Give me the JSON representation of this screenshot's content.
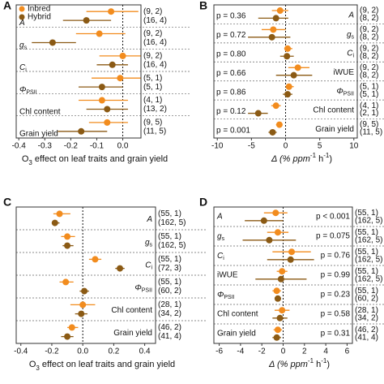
{
  "chart_data": [
    {
      "type": "forest",
      "panel": "A",
      "xlabel": [
        "O",
        "3",
        " effect on leaf traits and grain yield"
      ],
      "xlabel_script": "sub",
      "xlim": [
        -0.41,
        0.07
      ],
      "xticks": [
        -0.4,
        -0.3,
        -0.2,
        -0.1,
        {
          "value": 0,
          "label": "0.0"
        }
      ],
      "traits": [
        "A",
        [
          "g",
          "s"
        ],
        [
          "C",
          "i"
        ],
        [
          "Φ",
          "PSII"
        ],
        "Chl content",
        "Grain yield"
      ],
      "trait_align": "left",
      "legend": "upper left",
      "series": [
        {
          "name": "Inbred",
          "color": "#f28c1e",
          "values": [
            -0.045,
            -0.09,
            0.0,
            -0.01,
            -0.08,
            -0.06
          ],
          "lo": [
            -0.14,
            -0.18,
            -0.09,
            -0.12,
            -0.17,
            -0.13
          ],
          "hi": [
            0.06,
            0.01,
            0.07,
            0.07,
            0.02,
            0.02
          ]
        },
        {
          "name": "Hybrid",
          "color": "#8b5a14",
          "values": [
            -0.14,
            -0.27,
            -0.04,
            -0.08,
            -0.06,
            -0.16
          ],
          "lo": [
            -0.23,
            -0.35,
            -0.1,
            -0.17,
            -0.14,
            -0.25
          ],
          "hi": [
            -0.045,
            -0.18,
            0.02,
            0.0,
            0.02,
            -0.06
          ]
        }
      ],
      "counts": [
        "(9, 2)",
        "(16, 4)",
        "(9, 2)",
        "(16, 4)",
        "(9, 2)",
        "(16, 4)",
        "(5, 1)",
        "(5, 1)",
        "(4, 1)",
        "(13, 2)",
        "(9, 5)",
        "(11, 5)"
      ]
    },
    {
      "type": "forest",
      "panel": "B",
      "xlabel": [
        "Δ (% ppm",
        "-1",
        " h",
        "-1",
        ")"
      ],
      "xlabel_script": "sup",
      "xlim": [
        -10.5,
        10.5
      ],
      "xticks": [
        -10,
        -5,
        0,
        5,
        10
      ],
      "traits": [
        "A",
        [
          "g",
          "s"
        ],
        [
          "C",
          "i"
        ],
        "iWUE",
        [
          "Φ",
          "PSII"
        ],
        "Chl content",
        "Grain yield"
      ],
      "trait_align": "right",
      "p_values": [
        "p = 0.36",
        "p = 0.72",
        "p = 0.80",
        "p = 0.66",
        "p = 0.86",
        "p = 0.12",
        "p = 0.001"
      ],
      "p_align": "left",
      "series": [
        {
          "name": "Inbred",
          "color": "#f28c1e",
          "values": [
            -0.8,
            -1.8,
            0.3,
            1.8,
            0.5,
            -1.4,
            -0.9
          ],
          "lo": [
            -2,
            -3.5,
            -0.2,
            0.4,
            0,
            -2.1,
            -1.4
          ],
          "hi": [
            0.4,
            0,
            1,
            3.5,
            1.2,
            -0.7,
            -0.5
          ]
        },
        {
          "name": "Hybrid",
          "color": "#8b5a14",
          "values": [
            -1.4,
            -2,
            0.2,
            1.2,
            0.3,
            -4,
            -1.9
          ],
          "lo": [
            -4,
            -5.5,
            -0.8,
            -1.4,
            -0.4,
            -5.5,
            -2.5
          ],
          "hi": [
            0.4,
            0.7,
            1.2,
            3.9,
            1,
            -2.6,
            -1.3
          ]
        }
      ],
      "counts": [
        "(9, 2)",
        "(8, 2)",
        "(9, 2)",
        "(8, 2)",
        "(9, 2)",
        "(8, 2)",
        "(9, 2)",
        "(8, 2)",
        "(5, 1)",
        "(5, 1)",
        "(4, 1)",
        "(2, 1)",
        "(9, 5)",
        "(11, 5)"
      ]
    },
    {
      "type": "forest",
      "panel": "C",
      "xlabel": [
        "O",
        "3",
        " effect on leaf traits and grain yield"
      ],
      "xlabel_script": "sub",
      "xlim": [
        -0.43,
        0.47
      ],
      "xticks": [
        -0.4,
        -0.2,
        {
          "value": 0,
          "label": "0.0"
        },
        0.2,
        0.4
      ],
      "traits": [
        "A",
        [
          "g",
          "s"
        ],
        [
          "C",
          "i"
        ],
        [
          "Φ",
          "PSII"
        ],
        "Chl content",
        "Grain yield"
      ],
      "trait_align": "right",
      "series": [
        {
          "name": "Inbred",
          "color": "#f28c1e",
          "values": [
            -0.15,
            -0.1,
            0.08,
            -0.11,
            0.0,
            -0.07
          ],
          "lo": [
            -0.19,
            -0.14,
            0.04,
            -0.15,
            -0.08,
            -0.1
          ],
          "hi": [
            -0.08,
            -0.05,
            0.12,
            -0.06,
            0.08,
            -0.03
          ]
        },
        {
          "name": "Hybrid",
          "color": "#8b5a14",
          "values": [
            -0.18,
            -0.1,
            0.24,
            0.01,
            -0.01,
            -0.1
          ],
          "lo": [
            -0.2,
            -0.13,
            0.21,
            -0.02,
            -0.05,
            -0.14
          ],
          "hi": [
            -0.15,
            -0.06,
            0.27,
            0.04,
            0.03,
            -0.06
          ]
        }
      ],
      "counts": [
        "(55, 1)",
        "(162, 5)",
        "(55, 1)",
        "(162, 5)",
        "(55, 1)",
        "(72, 3)",
        "(55, 1)",
        "(60, 2)",
        "(28, 1)",
        "(34, 2)",
        "(46, 2)",
        "(41, 4)"
      ]
    },
    {
      "type": "forest",
      "panel": "D",
      "xlabel": [
        "Δ (% ppm",
        "-1",
        " h",
        "-1",
        ")"
      ],
      "xlabel_script": "sup",
      "xlim": [
        -6.5,
        6.5
      ],
      "xticks": [
        -6,
        -4,
        -2,
        0,
        2,
        4,
        6
      ],
      "traits": [
        "A",
        [
          "g",
          "s"
        ],
        [
          "C",
          "i"
        ],
        "iWUE",
        [
          "Φ",
          "PSII"
        ],
        "Chl content",
        "Grain yield"
      ],
      "trait_align": "left",
      "p_values": [
        "p < 0.001",
        "p = 0.075",
        "p = 0.76",
        "p = 0.99",
        "p = 0.23",
        "p = 0.58",
        "p = 0.31"
      ],
      "p_align": "right",
      "series": [
        {
          "name": "Inbred",
          "color": "#f28c1e",
          "values": [
            -0.7,
            -0.5,
            0.8,
            -0.1,
            -0.6,
            -0.1,
            -0.5
          ],
          "lo": [
            -1.8,
            -1.5,
            -1,
            -0.6,
            -1,
            -0.8,
            -0.9
          ],
          "hi": [
            0.4,
            0.5,
            2.6,
            0.4,
            -0.2,
            0.6,
            -0.1
          ]
        },
        {
          "name": "Hybrid",
          "color": "#8b5a14",
          "values": [
            -1.8,
            -1.3,
            0.7,
            -0.2,
            -0.5,
            -0.3,
            -0.6
          ],
          "lo": [
            -3.6,
            -3.8,
            -1.5,
            -2.6,
            -0.8,
            -1,
            -1
          ],
          "hi": [
            0,
            1.2,
            2.9,
            2.2,
            -0.2,
            0.4,
            -0.2
          ]
        }
      ],
      "counts": [
        "(55, 1)",
        "(162, 5)",
        "(55, 1)",
        "(162, 5)",
        "(55, 1)",
        "(162, 5)",
        "(55, 1)",
        "(162, 5)",
        "(55, 1)",
        "(60, 2)",
        "(28, 1)",
        "(34, 2)",
        "(46, 2)",
        "(41, 4)"
      ]
    }
  ]
}
